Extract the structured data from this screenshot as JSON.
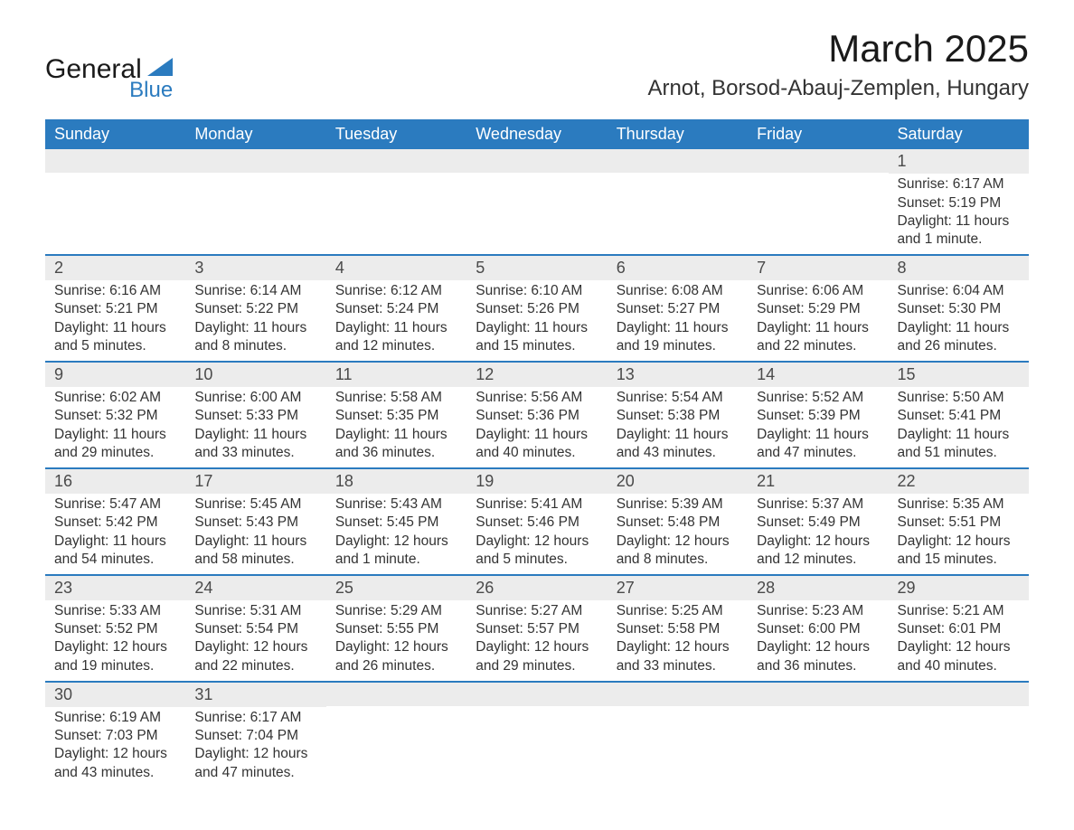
{
  "brand": {
    "word1": "General",
    "word2": "Blue",
    "accent_color": "#2b7bbf"
  },
  "title": "March 2025",
  "location": "Arnot, Borsod-Abauj-Zemplen, Hungary",
  "colors": {
    "header_bg": "#2b7bbf",
    "header_text": "#ffffff",
    "daynum_bg": "#ececec",
    "row_divider": "#2b7bbf",
    "body_text": "#333333",
    "background": "#ffffff"
  },
  "fonts": {
    "title_size_pt": 32,
    "location_size_pt": 18,
    "header_size_pt": 14,
    "body_size_pt": 12
  },
  "day_names": [
    "Sunday",
    "Monday",
    "Tuesday",
    "Wednesday",
    "Thursday",
    "Friday",
    "Saturday"
  ],
  "weeks": [
    [
      {
        "day": "",
        "sunrise": "",
        "sunset": "",
        "daylight1": "",
        "daylight2": ""
      },
      {
        "day": "",
        "sunrise": "",
        "sunset": "",
        "daylight1": "",
        "daylight2": ""
      },
      {
        "day": "",
        "sunrise": "",
        "sunset": "",
        "daylight1": "",
        "daylight2": ""
      },
      {
        "day": "",
        "sunrise": "",
        "sunset": "",
        "daylight1": "",
        "daylight2": ""
      },
      {
        "day": "",
        "sunrise": "",
        "sunset": "",
        "daylight1": "",
        "daylight2": ""
      },
      {
        "day": "",
        "sunrise": "",
        "sunset": "",
        "daylight1": "",
        "daylight2": ""
      },
      {
        "day": "1",
        "sunrise": "Sunrise: 6:17 AM",
        "sunset": "Sunset: 5:19 PM",
        "daylight1": "Daylight: 11 hours",
        "daylight2": "and 1 minute."
      }
    ],
    [
      {
        "day": "2",
        "sunrise": "Sunrise: 6:16 AM",
        "sunset": "Sunset: 5:21 PM",
        "daylight1": "Daylight: 11 hours",
        "daylight2": "and 5 minutes."
      },
      {
        "day": "3",
        "sunrise": "Sunrise: 6:14 AM",
        "sunset": "Sunset: 5:22 PM",
        "daylight1": "Daylight: 11 hours",
        "daylight2": "and 8 minutes."
      },
      {
        "day": "4",
        "sunrise": "Sunrise: 6:12 AM",
        "sunset": "Sunset: 5:24 PM",
        "daylight1": "Daylight: 11 hours",
        "daylight2": "and 12 minutes."
      },
      {
        "day": "5",
        "sunrise": "Sunrise: 6:10 AM",
        "sunset": "Sunset: 5:26 PM",
        "daylight1": "Daylight: 11 hours",
        "daylight2": "and 15 minutes."
      },
      {
        "day": "6",
        "sunrise": "Sunrise: 6:08 AM",
        "sunset": "Sunset: 5:27 PM",
        "daylight1": "Daylight: 11 hours",
        "daylight2": "and 19 minutes."
      },
      {
        "day": "7",
        "sunrise": "Sunrise: 6:06 AM",
        "sunset": "Sunset: 5:29 PM",
        "daylight1": "Daylight: 11 hours",
        "daylight2": "and 22 minutes."
      },
      {
        "day": "8",
        "sunrise": "Sunrise: 6:04 AM",
        "sunset": "Sunset: 5:30 PM",
        "daylight1": "Daylight: 11 hours",
        "daylight2": "and 26 minutes."
      }
    ],
    [
      {
        "day": "9",
        "sunrise": "Sunrise: 6:02 AM",
        "sunset": "Sunset: 5:32 PM",
        "daylight1": "Daylight: 11 hours",
        "daylight2": "and 29 minutes."
      },
      {
        "day": "10",
        "sunrise": "Sunrise: 6:00 AM",
        "sunset": "Sunset: 5:33 PM",
        "daylight1": "Daylight: 11 hours",
        "daylight2": "and 33 minutes."
      },
      {
        "day": "11",
        "sunrise": "Sunrise: 5:58 AM",
        "sunset": "Sunset: 5:35 PM",
        "daylight1": "Daylight: 11 hours",
        "daylight2": "and 36 minutes."
      },
      {
        "day": "12",
        "sunrise": "Sunrise: 5:56 AM",
        "sunset": "Sunset: 5:36 PM",
        "daylight1": "Daylight: 11 hours",
        "daylight2": "and 40 minutes."
      },
      {
        "day": "13",
        "sunrise": "Sunrise: 5:54 AM",
        "sunset": "Sunset: 5:38 PM",
        "daylight1": "Daylight: 11 hours",
        "daylight2": "and 43 minutes."
      },
      {
        "day": "14",
        "sunrise": "Sunrise: 5:52 AM",
        "sunset": "Sunset: 5:39 PM",
        "daylight1": "Daylight: 11 hours",
        "daylight2": "and 47 minutes."
      },
      {
        "day": "15",
        "sunrise": "Sunrise: 5:50 AM",
        "sunset": "Sunset: 5:41 PM",
        "daylight1": "Daylight: 11 hours",
        "daylight2": "and 51 minutes."
      }
    ],
    [
      {
        "day": "16",
        "sunrise": "Sunrise: 5:47 AM",
        "sunset": "Sunset: 5:42 PM",
        "daylight1": "Daylight: 11 hours",
        "daylight2": "and 54 minutes."
      },
      {
        "day": "17",
        "sunrise": "Sunrise: 5:45 AM",
        "sunset": "Sunset: 5:43 PM",
        "daylight1": "Daylight: 11 hours",
        "daylight2": "and 58 minutes."
      },
      {
        "day": "18",
        "sunrise": "Sunrise: 5:43 AM",
        "sunset": "Sunset: 5:45 PM",
        "daylight1": "Daylight: 12 hours",
        "daylight2": "and 1 minute."
      },
      {
        "day": "19",
        "sunrise": "Sunrise: 5:41 AM",
        "sunset": "Sunset: 5:46 PM",
        "daylight1": "Daylight: 12 hours",
        "daylight2": "and 5 minutes."
      },
      {
        "day": "20",
        "sunrise": "Sunrise: 5:39 AM",
        "sunset": "Sunset: 5:48 PM",
        "daylight1": "Daylight: 12 hours",
        "daylight2": "and 8 minutes."
      },
      {
        "day": "21",
        "sunrise": "Sunrise: 5:37 AM",
        "sunset": "Sunset: 5:49 PM",
        "daylight1": "Daylight: 12 hours",
        "daylight2": "and 12 minutes."
      },
      {
        "day": "22",
        "sunrise": "Sunrise: 5:35 AM",
        "sunset": "Sunset: 5:51 PM",
        "daylight1": "Daylight: 12 hours",
        "daylight2": "and 15 minutes."
      }
    ],
    [
      {
        "day": "23",
        "sunrise": "Sunrise: 5:33 AM",
        "sunset": "Sunset: 5:52 PM",
        "daylight1": "Daylight: 12 hours",
        "daylight2": "and 19 minutes."
      },
      {
        "day": "24",
        "sunrise": "Sunrise: 5:31 AM",
        "sunset": "Sunset: 5:54 PM",
        "daylight1": "Daylight: 12 hours",
        "daylight2": "and 22 minutes."
      },
      {
        "day": "25",
        "sunrise": "Sunrise: 5:29 AM",
        "sunset": "Sunset: 5:55 PM",
        "daylight1": "Daylight: 12 hours",
        "daylight2": "and 26 minutes."
      },
      {
        "day": "26",
        "sunrise": "Sunrise: 5:27 AM",
        "sunset": "Sunset: 5:57 PM",
        "daylight1": "Daylight: 12 hours",
        "daylight2": "and 29 minutes."
      },
      {
        "day": "27",
        "sunrise": "Sunrise: 5:25 AM",
        "sunset": "Sunset: 5:58 PM",
        "daylight1": "Daylight: 12 hours",
        "daylight2": "and 33 minutes."
      },
      {
        "day": "28",
        "sunrise": "Sunrise: 5:23 AM",
        "sunset": "Sunset: 6:00 PM",
        "daylight1": "Daylight: 12 hours",
        "daylight2": "and 36 minutes."
      },
      {
        "day": "29",
        "sunrise": "Sunrise: 5:21 AM",
        "sunset": "Sunset: 6:01 PM",
        "daylight1": "Daylight: 12 hours",
        "daylight2": "and 40 minutes."
      }
    ],
    [
      {
        "day": "30",
        "sunrise": "Sunrise: 6:19 AM",
        "sunset": "Sunset: 7:03 PM",
        "daylight1": "Daylight: 12 hours",
        "daylight2": "and 43 minutes."
      },
      {
        "day": "31",
        "sunrise": "Sunrise: 6:17 AM",
        "sunset": "Sunset: 7:04 PM",
        "daylight1": "Daylight: 12 hours",
        "daylight2": "and 47 minutes."
      },
      {
        "day": "",
        "sunrise": "",
        "sunset": "",
        "daylight1": "",
        "daylight2": ""
      },
      {
        "day": "",
        "sunrise": "",
        "sunset": "",
        "daylight1": "",
        "daylight2": ""
      },
      {
        "day": "",
        "sunrise": "",
        "sunset": "",
        "daylight1": "",
        "daylight2": ""
      },
      {
        "day": "",
        "sunrise": "",
        "sunset": "",
        "daylight1": "",
        "daylight2": ""
      },
      {
        "day": "",
        "sunrise": "",
        "sunset": "",
        "daylight1": "",
        "daylight2": ""
      }
    ]
  ]
}
